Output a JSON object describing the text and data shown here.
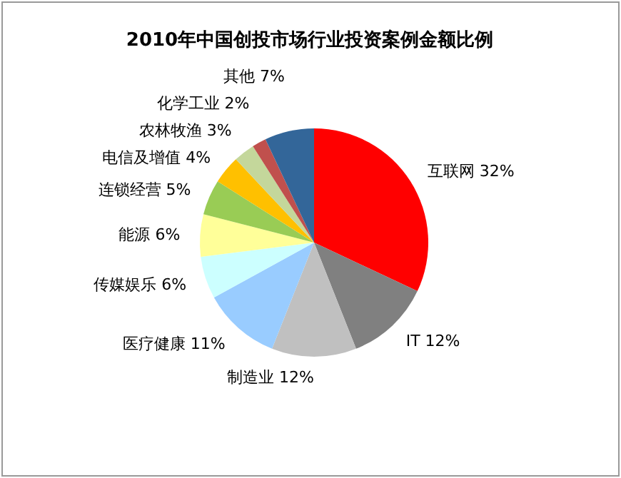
{
  "chart_data": {
    "type": "pie",
    "title": "2010年中国创投市场行业投资案例金额比例",
    "categories": [
      "互联网",
      "IT",
      "制造业",
      "医疗健康",
      "传媒娱乐",
      "能源",
      "连锁经营",
      "电信及增值",
      "农林牧渔",
      "化学工业",
      "其他"
    ],
    "values": [
      32,
      12,
      12,
      11,
      6,
      6,
      5,
      4,
      3,
      2,
      7
    ],
    "value_labels": [
      "32%",
      "12%",
      "12%",
      "11%",
      "6%",
      "6%",
      "5%",
      "4%",
      "3%",
      "2%",
      "7%"
    ],
    "colors": [
      "#ff0000",
      "#808080",
      "#c0c0c0",
      "#99ccff",
      "#ccffff",
      "#ffff99",
      "#99cc55",
      "#ffc000",
      "#c4d79b",
      "#c0504d",
      "#336699"
    ]
  }
}
